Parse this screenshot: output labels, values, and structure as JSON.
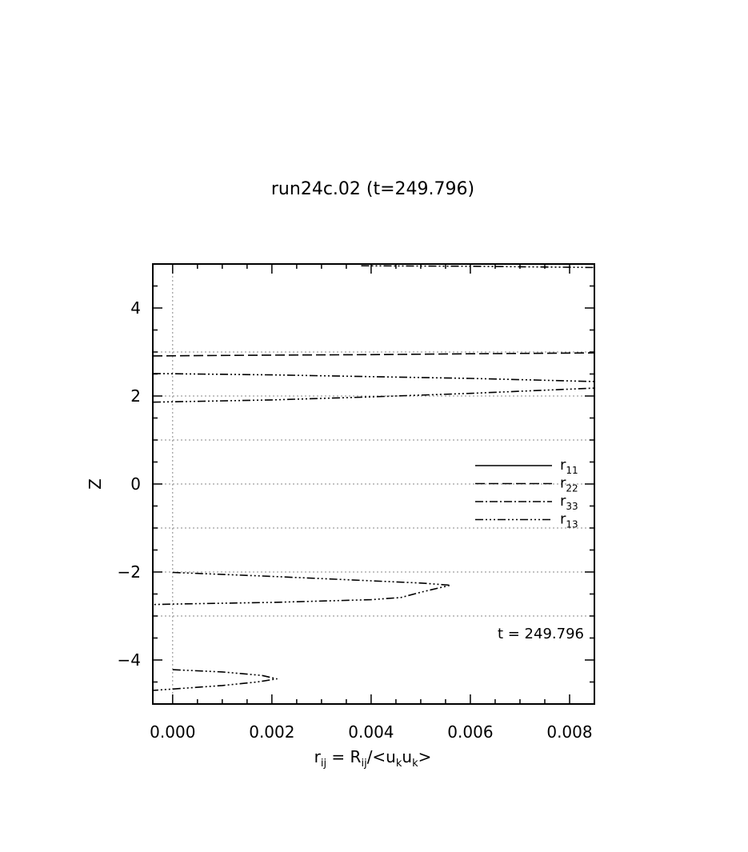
{
  "chart_data": {
    "type": "line",
    "title": "run24c.02 (t=249.796)",
    "xlabel": {
      "base": "r",
      "base_sub": "ij",
      "mid": " = R",
      "mid_sub": "ij",
      "tail": "/<u",
      "k1": "k",
      "u2": "u",
      "k2": "k",
      "end": ">"
    },
    "ylabel": "Z",
    "xlim": [
      -0.0004,
      0.0085
    ],
    "ylim": [
      -5,
      5
    ],
    "x_ticks": [
      {
        "value": 0.0,
        "label": "0.000"
      },
      {
        "value": 0.002,
        "label": "0.002"
      },
      {
        "value": 0.004,
        "label": "0.004"
      },
      {
        "value": 0.006,
        "label": "0.006"
      },
      {
        "value": 0.008,
        "label": "0.008"
      }
    ],
    "y_ticks": [
      {
        "value": 4,
        "label": "4"
      },
      {
        "value": 2,
        "label": "2"
      },
      {
        "value": 0,
        "label": "0"
      },
      {
        "value": -2,
        "label": "−2"
      },
      {
        "value": -4,
        "label": "−4"
      }
    ],
    "x_minor_step": 0.0005,
    "y_minor_step": 0.5,
    "h_dotted_lines": [
      3,
      2,
      1,
      0,
      -1,
      -2,
      -3
    ],
    "v_dotted_lines": [
      0
    ],
    "annotation": "t = 249.796",
    "legend_position": "right",
    "legend": [
      {
        "name": "r",
        "sub": "11",
        "dash": "none"
      },
      {
        "name": "r",
        "sub": "22",
        "dash": "12,5"
      },
      {
        "name": "r",
        "sub": "33",
        "dash": "10,3,2,3"
      },
      {
        "name": "r",
        "sub": "13",
        "dash": "10,3,2,3,2,3,2,3"
      }
    ],
    "series": [
      {
        "style": "r22",
        "points": [
          [
            -0.0004,
            2.91
          ],
          [
            0.002,
            2.93
          ],
          [
            0.004,
            2.94
          ],
          [
            0.006,
            2.96
          ],
          [
            0.0085,
            2.98
          ]
        ]
      },
      {
        "style": "r13",
        "points": [
          [
            0.0038,
            4.96
          ],
          [
            0.006,
            4.95
          ],
          [
            0.0085,
            4.92
          ]
        ]
      },
      {
        "style": "r13",
        "points": [
          [
            -0.0004,
            2.51
          ],
          [
            0.002,
            2.48
          ],
          [
            0.004,
            2.44
          ],
          [
            0.006,
            2.4
          ],
          [
            0.0085,
            2.33
          ]
        ]
      },
      {
        "style": "r13",
        "points": [
          [
            -0.0004,
            1.86
          ],
          [
            0.002,
            1.91
          ],
          [
            0.004,
            1.98
          ],
          [
            0.006,
            2.06
          ],
          [
            0.0085,
            2.18
          ]
        ]
      },
      {
        "style": "r13",
        "points": [
          [
            0.0,
            -2.01
          ],
          [
            0.002,
            -2.1
          ],
          [
            0.004,
            -2.2
          ],
          [
            0.005,
            -2.25
          ],
          [
            0.0056,
            -2.3
          ],
          [
            0.005,
            -2.46
          ],
          [
            0.0046,
            -2.58
          ],
          [
            0.004,
            -2.63
          ],
          [
            0.002,
            -2.69
          ],
          [
            0.0,
            -2.73
          ],
          [
            -0.0004,
            -2.74
          ]
        ]
      },
      {
        "style": "r13",
        "points": [
          [
            0.0,
            -4.22
          ],
          [
            0.001,
            -4.27
          ],
          [
            0.0018,
            -4.35
          ],
          [
            0.0021,
            -4.43
          ],
          [
            0.0017,
            -4.5
          ],
          [
            0.001,
            -4.58
          ],
          [
            0.0,
            -4.66
          ],
          [
            -0.0004,
            -4.69
          ]
        ]
      }
    ]
  }
}
